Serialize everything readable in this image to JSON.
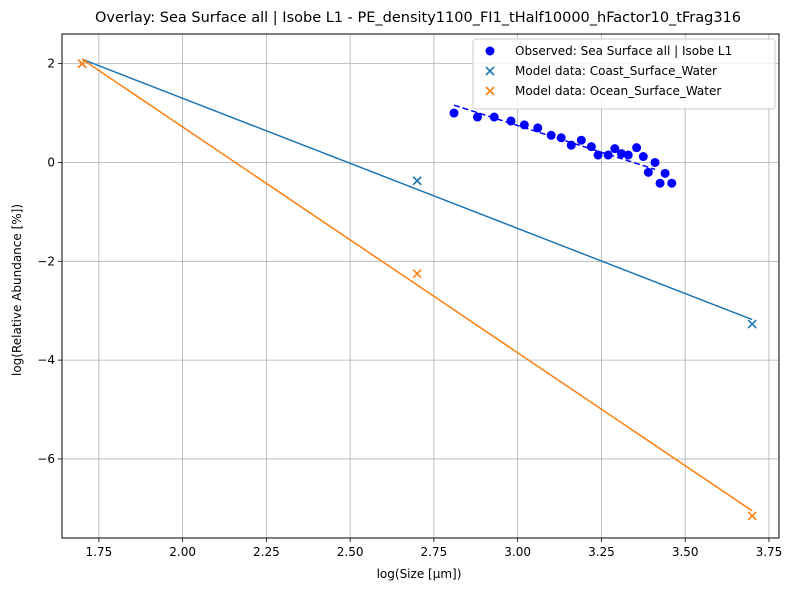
{
  "chart_data": {
    "type": "scatter",
    "title": "Overlay: Sea Surface all | Isobe L1 - PE_density1100_FI1_tHalf10000_hFactor10_tFrag316",
    "xlabel": "log(Size [μm])",
    "ylabel": "log(Relative Abundance [%])",
    "xlim": [
      1.64,
      3.78
    ],
    "ylim": [
      -7.6,
      2.6
    ],
    "xticks": [
      1.75,
      2.0,
      2.25,
      2.5,
      2.75,
      3.0,
      3.25,
      3.5,
      3.75
    ],
    "xtick_labels": [
      "1.75",
      "2.00",
      "2.25",
      "2.50",
      "2.75",
      "3.00",
      "3.25",
      "3.50",
      "3.75"
    ],
    "yticks": [
      -6,
      -4,
      -2,
      0,
      2
    ],
    "ytick_labels": [
      "−6",
      "−4",
      "−2",
      "0",
      "2"
    ],
    "grid": true,
    "legend_position": "top-right",
    "observed": {
      "name": "Observed: Sea Surface all | Isobe L1",
      "color": "#0000ff",
      "marker": "circle",
      "x": [
        2.81,
        2.88,
        2.93,
        2.98,
        3.02,
        3.06,
        3.1,
        3.13,
        3.16,
        3.19,
        3.22,
        3.24,
        3.27,
        3.29,
        3.31,
        3.33,
        3.355,
        3.375,
        3.39,
        3.41,
        3.425,
        3.44,
        3.46
      ],
      "y": [
        1.0,
        0.92,
        0.92,
        0.84,
        0.76,
        0.7,
        0.55,
        0.5,
        0.35,
        0.45,
        0.32,
        0.15,
        0.15,
        0.28,
        0.18,
        0.15,
        0.3,
        0.12,
        -0.2,
        0.0,
        -0.42,
        -0.22,
        -0.42
      ],
      "fit": {
        "x": [
          2.81,
          3.41
        ],
        "y": [
          1.16,
          -0.14
        ],
        "style": "dashed"
      }
    },
    "series": [
      {
        "name": "Model data: Coast_Surface_Water",
        "color": "#1f77b4",
        "marker": "x",
        "x": [
          1.7,
          2.7,
          3.7
        ],
        "y": [
          2.0,
          -0.37,
          -3.27
        ],
        "fit": {
          "x": [
            1.7,
            3.7
          ],
          "y": [
            2.09,
            -3.18
          ]
        }
      },
      {
        "name": "Model data: Ocean_Surface_Water",
        "color": "#ff7f0e",
        "marker": "x",
        "x": [
          1.7,
          2.7,
          3.7
        ],
        "y": [
          2.0,
          -2.25,
          -7.15
        ],
        "fit": {
          "x": [
            1.7,
            3.7
          ],
          "y": [
            2.09,
            -7.05
          ]
        }
      }
    ]
  }
}
